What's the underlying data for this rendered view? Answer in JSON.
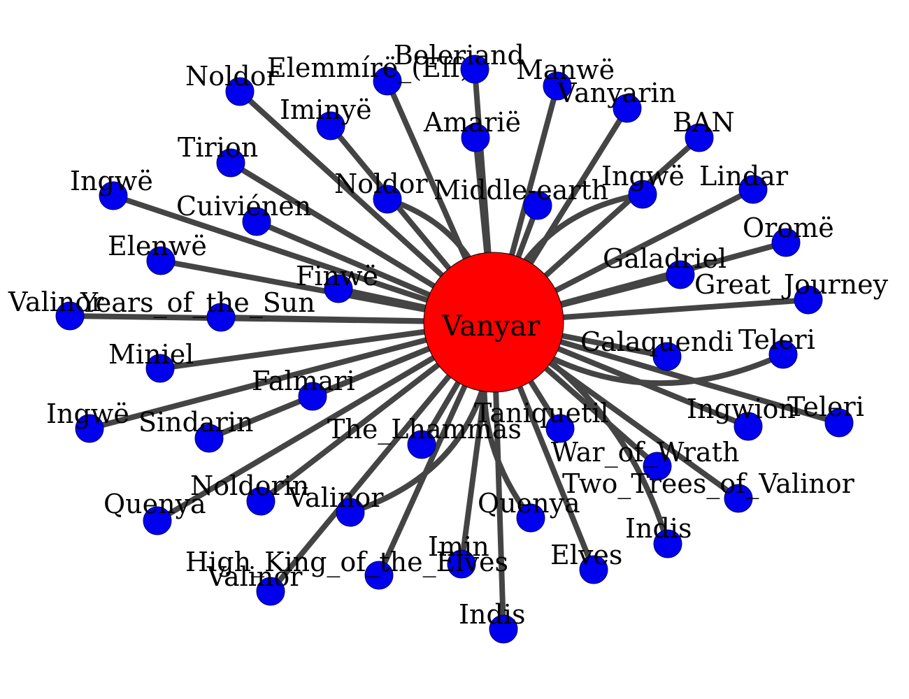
{
  "colors": {
    "edge": "#444444",
    "node": "#0000ee",
    "center": "#ff0000"
  },
  "center": {
    "label": "Vanyar"
  },
  "nodes": [
    {
      "label": "Noldor"
    },
    {
      "label": "Elemmírë_(Eff)"
    },
    {
      "label": "Beleriand"
    },
    {
      "label": "Manwë"
    },
    {
      "label": "Vanyarin"
    },
    {
      "label": "Iminyë"
    },
    {
      "label": "Amarië"
    },
    {
      "label": "BAN"
    },
    {
      "label": "Tirion"
    },
    {
      "label": "Ingwë"
    },
    {
      "label": "Noldor"
    },
    {
      "label": "Middle-earth"
    },
    {
      "label": "Ingwë"
    },
    {
      "label": "Lindar"
    },
    {
      "label": "Cuiviénen"
    },
    {
      "label": "Oromë"
    },
    {
      "label": "Elenwë"
    },
    {
      "label": "Galadriel"
    },
    {
      "label": "Finwë"
    },
    {
      "label": "Great_Journey"
    },
    {
      "label": "Valinor"
    },
    {
      "label": "Years_of_the_Sun"
    },
    {
      "label": "Calaquendi"
    },
    {
      "label": "Teleri"
    },
    {
      "label": "Miniel"
    },
    {
      "label": "Falmari"
    },
    {
      "label": "Ingwë"
    },
    {
      "label": "Sindarin"
    },
    {
      "label": "The_Lhammas"
    },
    {
      "label": "Taniquetil"
    },
    {
      "label": "Ingwion"
    },
    {
      "label": "Teleri"
    },
    {
      "label": "War_of_Wrath"
    },
    {
      "label": "Noldorin"
    },
    {
      "label": "Quenya"
    },
    {
      "label": "Valinor"
    },
    {
      "label": "Quenya"
    },
    {
      "label": "Two_Trees_of_Valinor"
    },
    {
      "label": "Indis"
    },
    {
      "label": "Imin"
    },
    {
      "label": "High_King_of_the_Elves"
    },
    {
      "label": "Valinor"
    },
    {
      "label": "Elves"
    },
    {
      "label": "Indis"
    }
  ]
}
